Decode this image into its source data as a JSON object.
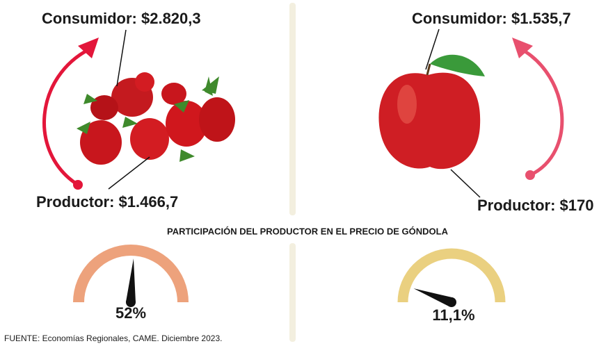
{
  "panels": [
    {
      "consumer": "Consumidor: $2.820,3",
      "producer": "Productor: $1.466,7"
    },
    {
      "consumer": "Consumidor: $1.535,7",
      "producer": "Productor: $170"
    }
  ],
  "subtitle": "PARTICIPACIÓN DEL PRODUCTOR EN EL PRECIO DE GÓNDOLA",
  "gauges": [
    {
      "value": 52,
      "label": "52%",
      "color": "#eda27c",
      "scale": [
        0,
        100
      ]
    },
    {
      "value": 11.1,
      "label": "11,1%",
      "color": "#ead080",
      "scale": [
        0,
        100
      ]
    }
  ],
  "source": "FUENTE: Economías Regionales, CAME. Diciembre 2023."
}
